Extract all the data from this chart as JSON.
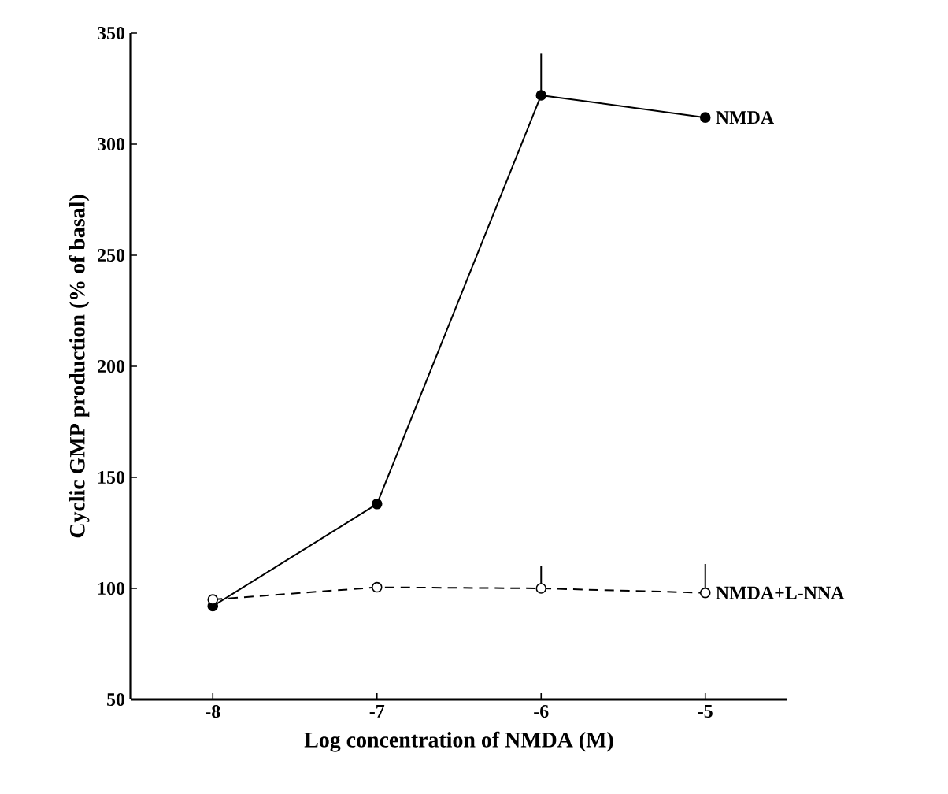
{
  "chart_data": {
    "type": "line",
    "xlabel": "Log concentration of NMDA (M)",
    "ylabel": "Cyclic GMP production (% of basal)",
    "x": [
      -8,
      -7,
      -6,
      -5
    ],
    "xlim": [
      -8.5,
      -4.5
    ],
    "ylim": [
      50,
      350
    ],
    "xticks": [
      -8,
      -7,
      -6,
      -5
    ],
    "yticks": [
      50,
      100,
      150,
      200,
      250,
      300,
      350
    ],
    "marker": "circle",
    "series": [
      {
        "name": "NMDA",
        "color": "#000000",
        "line_style": "solid",
        "values": [
          92,
          138,
          322,
          312
        ],
        "errors": [
          null,
          null,
          [
            322,
            341
          ],
          null
        ]
      },
      {
        "name": "NMDA+L-NNA",
        "color": "#000000",
        "line_style": "dashed",
        "values": [
          95,
          100.5,
          100,
          98
        ],
        "errors": [
          null,
          null,
          [
            100,
            110
          ],
          [
            98,
            111
          ]
        ]
      }
    ]
  }
}
